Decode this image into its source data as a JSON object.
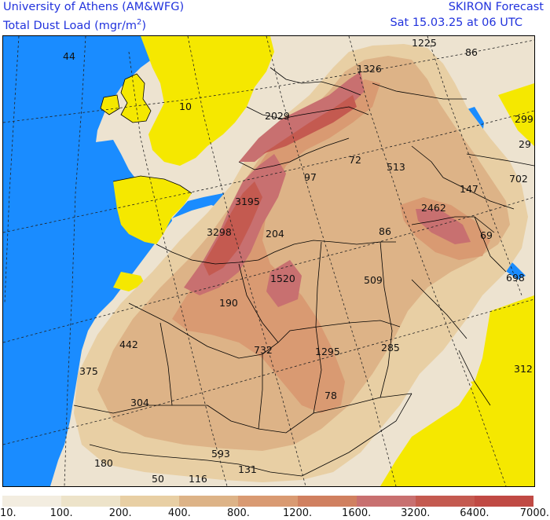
{
  "header": {
    "institution": "University of Athens (AM&WFG)",
    "variable_prefix": "Total Dust Load (mgr/m",
    "variable_exp": "2",
    "variable_suffix": ")",
    "model": "SKIRON Forecast",
    "valid_time": "Sat 15.03.25 at 06 UTC"
  },
  "colors": {
    "ocean": "#1a8cff",
    "land_low": "#f5e800",
    "border": "#000000",
    "title_text": "#2233dd"
  },
  "legend": {
    "boxes": [
      {
        "color": "#f3ede0"
      },
      {
        "color": "#ede3c9"
      },
      {
        "color": "#e8cfa4"
      },
      {
        "color": "#ddb387"
      },
      {
        "color": "#d99a72"
      },
      {
        "color": "#d08060"
      },
      {
        "color": "#c87070"
      },
      {
        "color": "#c45a50"
      },
      {
        "color": "#c04a44"
      }
    ],
    "labels": [
      "10.",
      "100.",
      "200.",
      "400.",
      "800.",
      "1200.",
      "1600.",
      "3200.",
      "6400.",
      "7000."
    ]
  },
  "values": [
    {
      "text": "44"
    },
    {
      "text": "10"
    },
    {
      "text": "1326"
    },
    {
      "text": "1225"
    },
    {
      "text": "86"
    },
    {
      "text": "299"
    },
    {
      "text": "29"
    },
    {
      "text": "2029"
    },
    {
      "text": "72"
    },
    {
      "text": "513"
    },
    {
      "text": "702"
    },
    {
      "text": "97"
    },
    {
      "text": "147"
    },
    {
      "text": "3195"
    },
    {
      "text": "2462"
    },
    {
      "text": "3298"
    },
    {
      "text": "204"
    },
    {
      "text": "86"
    },
    {
      "text": "69"
    },
    {
      "text": "1520"
    },
    {
      "text": "509"
    },
    {
      "text": "698"
    },
    {
      "text": "190"
    },
    {
      "text": "442"
    },
    {
      "text": "732"
    },
    {
      "text": "1295"
    },
    {
      "text": "285"
    },
    {
      "text": "375"
    },
    {
      "text": "312"
    },
    {
      "text": "304"
    },
    {
      "text": "78"
    },
    {
      "text": "593"
    },
    {
      "text": "180"
    },
    {
      "text": "131"
    },
    {
      "text": "50"
    },
    {
      "text": "116"
    }
  ]
}
